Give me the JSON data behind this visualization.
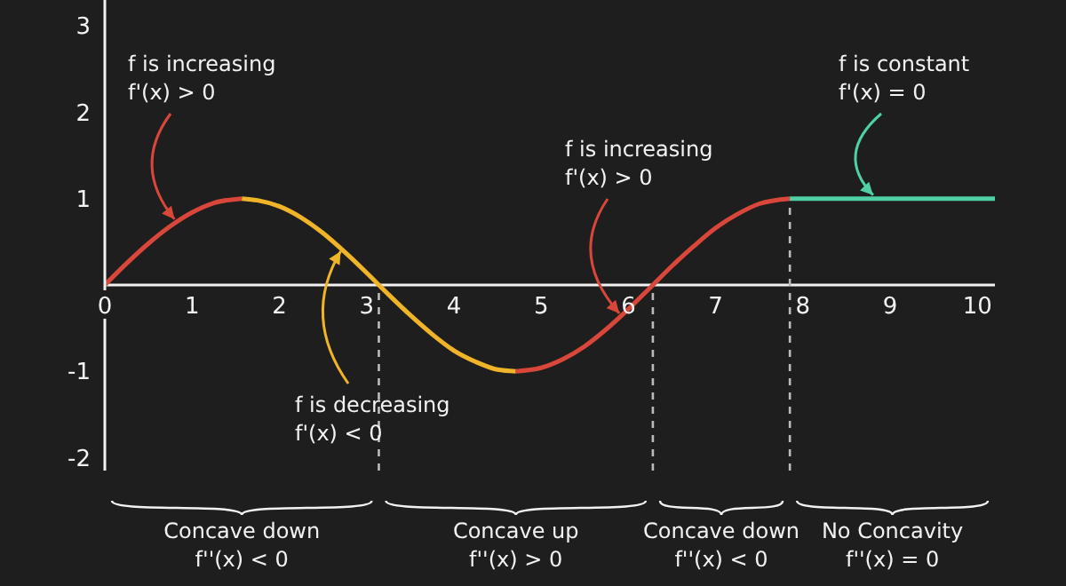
{
  "chart_data": {
    "type": "line",
    "series": [
      {
        "color": "#d9473a",
        "x": [
          0,
          0.25,
          0.5,
          0.75,
          1,
          1.25,
          1.57
        ],
        "values": [
          0,
          0.25,
          0.48,
          0.68,
          0.84,
          0.95,
          1
        ]
      },
      {
        "color": "#f0b429",
        "x": [
          1.57,
          1.75,
          2,
          2.25,
          2.5,
          2.75,
          3,
          3.25,
          3.5,
          3.75,
          4,
          4.25,
          4.5,
          4.71
        ],
        "values": [
          1,
          0.98,
          0.91,
          0.78,
          0.6,
          0.38,
          0.14,
          -0.11,
          -0.35,
          -0.57,
          -0.76,
          -0.89,
          -0.98,
          -1
        ]
      },
      {
        "color": "#d9473a",
        "x": [
          4.71,
          5,
          5.25,
          5.5,
          5.75,
          6,
          6.28,
          6.5,
          6.75,
          7,
          7.25,
          7.5,
          7.85
        ],
        "values": [
          -1,
          -0.96,
          -0.86,
          -0.71,
          -0.51,
          -0.28,
          0,
          0.22,
          0.45,
          0.66,
          0.82,
          0.94,
          1
        ]
      },
      {
        "color": "#4fd1a5",
        "x": [
          7.85,
          10.2
        ],
        "values": [
          1,
          1
        ]
      }
    ],
    "xlim": [
      0,
      10.2
    ],
    "xticks": [
      0,
      1,
      2,
      3,
      4,
      5,
      6,
      7,
      8,
      9,
      10
    ],
    "ylim": [
      -2.15,
      3.3
    ],
    "yticks": [
      -2,
      -1,
      1,
      2,
      3
    ],
    "ref_lines": [
      {
        "axis": "x",
        "value": 3.14,
        "color": "#bbbbbb",
        "line_style": "dashed"
      },
      {
        "axis": "x",
        "value": 6.28,
        "color": "#bbbbbb",
        "line_style": "dashed"
      },
      {
        "axis": "x",
        "value": 7.85,
        "color": "#bbbbbb",
        "line_style": "dashed"
      }
    ],
    "annotations": [
      {
        "text": "f is increasing\nf'(x) > 0",
        "x": 0.8,
        "y": 0.72
      },
      {
        "text": "f is decreasing\nf'(x) < 0",
        "x": 2.7,
        "y": 0.43
      },
      {
        "text": "f is increasing\nf'(x) > 0",
        "x": 5.9,
        "y": -0.37
      },
      {
        "text": "f is constant\nf'(x) = 0",
        "x": 8.8,
        "y": 1
      },
      "Concave down\nf''(x) < 0",
      "Concave up\nf''(x) > 0",
      "Concave down\nf''(x) < 0",
      "No Concavity\nf''(x) = 0"
    ]
  }
}
